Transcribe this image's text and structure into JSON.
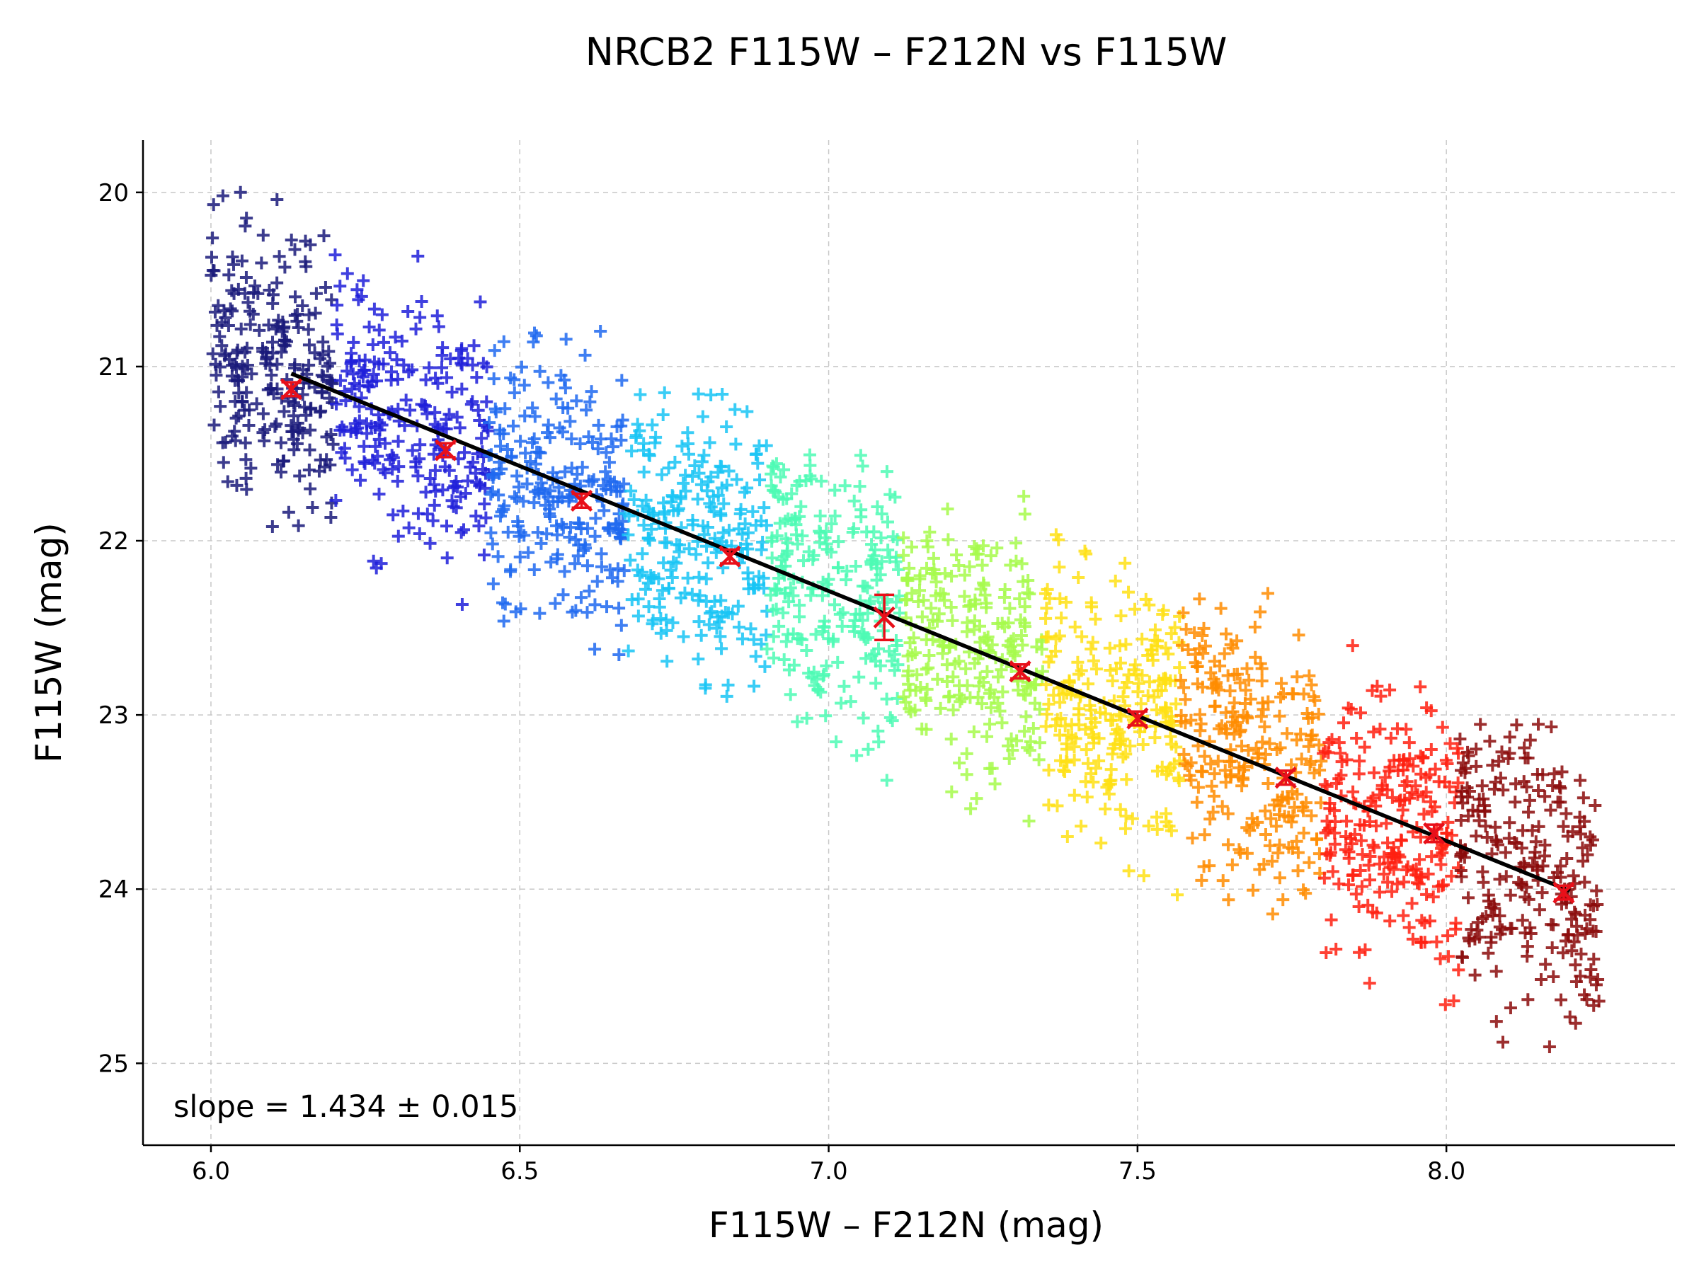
{
  "chart_data": {
    "type": "scatter",
    "title": "NRCB2 F115W – F212N vs F115W",
    "xlabel": "F115W – F212N (mag)",
    "ylabel": "F115W (mag)",
    "xlim": [
      5.89,
      8.37
    ],
    "ylim": [
      25.47,
      19.7
    ],
    "y_inverted": true,
    "grid": true,
    "xticks": [
      "6.0",
      "6.5",
      "7.0",
      "7.5",
      "8.0"
    ],
    "xtick_values": [
      6.0,
      6.5,
      7.0,
      7.5,
      8.0
    ],
    "yticks": [
      "20",
      "21",
      "22",
      "23",
      "24",
      "25"
    ],
    "ytick_values": [
      20,
      21,
      22,
      23,
      24,
      25
    ],
    "scatter": {
      "marker": "+",
      "colormap": "jet",
      "description_bins": [
        {
          "x_range": [
            6.0,
            6.2
          ],
          "color": "#1a1a7a",
          "y_center_at_x": 21.2,
          "y_spread": [
            19.95,
            22.1
          ]
        },
        {
          "x_range": [
            6.2,
            6.45
          ],
          "color": "#1f1fd9",
          "y_center_at_x": 21.5,
          "y_spread": [
            20.35,
            22.5
          ]
        },
        {
          "x_range": [
            6.45,
            6.67
          ],
          "color": "#1f68f0",
          "y_center_at_x": 21.8,
          "y_spread": [
            20.65,
            22.9
          ]
        },
        {
          "x_range": [
            6.67,
            6.9
          ],
          "color": "#17c4f5",
          "y_center_at_x": 22.1,
          "y_spread": [
            21.05,
            23.2
          ]
        },
        {
          "x_range": [
            6.9,
            7.12
          ],
          "color": "#4dfab4",
          "y_center_at_x": 22.45,
          "y_spread": [
            21.5,
            23.5
          ]
        },
        {
          "x_range": [
            7.12,
            7.35
          ],
          "color": "#a6fa4b",
          "y_center_at_x": 22.75,
          "y_spread": [
            21.6,
            23.85
          ]
        },
        {
          "x_range": [
            7.35,
            7.57
          ],
          "color": "#ffe014",
          "y_center_at_x": 23.0,
          "y_spread": [
            21.9,
            24.2
          ]
        },
        {
          "x_range": [
            7.57,
            7.8
          ],
          "color": "#ff8c00",
          "y_center_at_x": 23.35,
          "y_spread": [
            22.2,
            24.45
          ]
        },
        {
          "x_range": [
            7.8,
            8.02
          ],
          "color": "#ff2010",
          "y_center_at_x": 23.7,
          "y_spread": [
            22.55,
            24.85
          ]
        },
        {
          "x_range": [
            8.02,
            8.25
          ],
          "color": "#8b0a0a",
          "y_center_at_x": 24.0,
          "y_spread": [
            23.05,
            25.2
          ]
        }
      ]
    },
    "series": [
      {
        "type": "fit_line",
        "color": "#000000",
        "x": [
          6.13,
          8.2
        ],
        "y": [
          21.04,
          24.01
        ]
      },
      {
        "type": "binned_points",
        "marker": "x",
        "color": "#e8101a",
        "x": [
          6.13,
          6.38,
          6.6,
          6.84,
          7.09,
          7.31,
          7.5,
          7.74,
          7.98,
          8.19
        ],
        "y": [
          21.13,
          21.48,
          21.77,
          22.09,
          22.44,
          22.75,
          23.02,
          23.36,
          23.68,
          24.02
        ],
        "yerr": [
          0.04,
          0.04,
          0.04,
          0.04,
          0.13,
          0.04,
          0.04,
          0.04,
          0.05,
          0.04
        ]
      }
    ],
    "annotations": [
      {
        "text": "slope = 1.434 ± 0.015",
        "position": "lower-left"
      }
    ]
  }
}
